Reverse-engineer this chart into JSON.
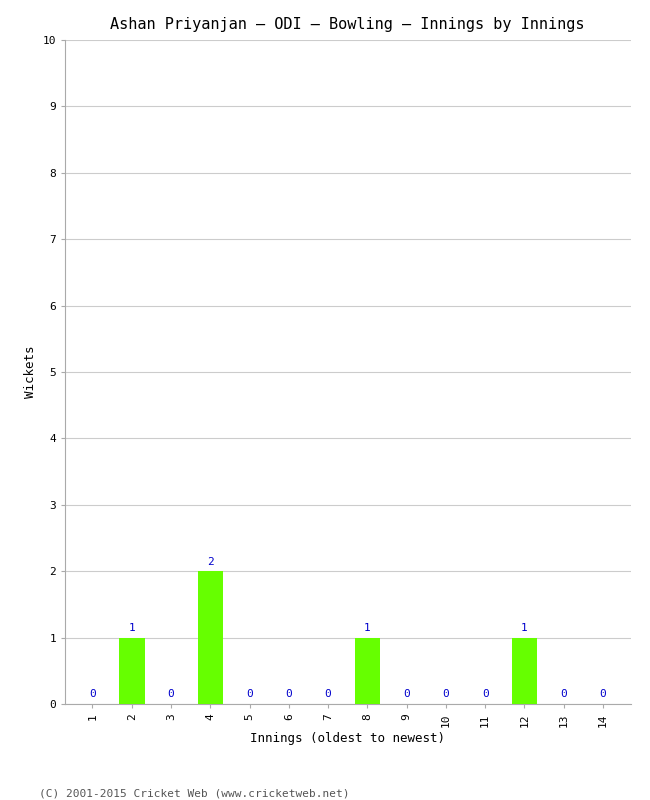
{
  "title": "Ashan Priyanjan – ODI – Bowling – Innings by Innings",
  "xlabel": "Innings (oldest to newest)",
  "ylabel": "Wickets",
  "innings": [
    1,
    2,
    3,
    4,
    5,
    6,
    7,
    8,
    9,
    10,
    11,
    12,
    13,
    14
  ],
  "wickets": [
    0,
    1,
    0,
    2,
    0,
    0,
    0,
    1,
    0,
    0,
    0,
    1,
    0,
    0
  ],
  "bar_color": "#66ff00",
  "label_color": "#0000cc",
  "ylim": [
    0,
    10
  ],
  "yticks": [
    0,
    1,
    2,
    3,
    4,
    5,
    6,
    7,
    8,
    9,
    10
  ],
  "background_color": "#ffffff",
  "grid_color": "#cccccc",
  "footer": "(C) 2001-2015 Cricket Web (www.cricketweb.net)",
  "title_fontsize": 11,
  "axis_label_fontsize": 9,
  "tick_fontsize": 8,
  "annotation_fontsize": 8,
  "footer_fontsize": 8
}
